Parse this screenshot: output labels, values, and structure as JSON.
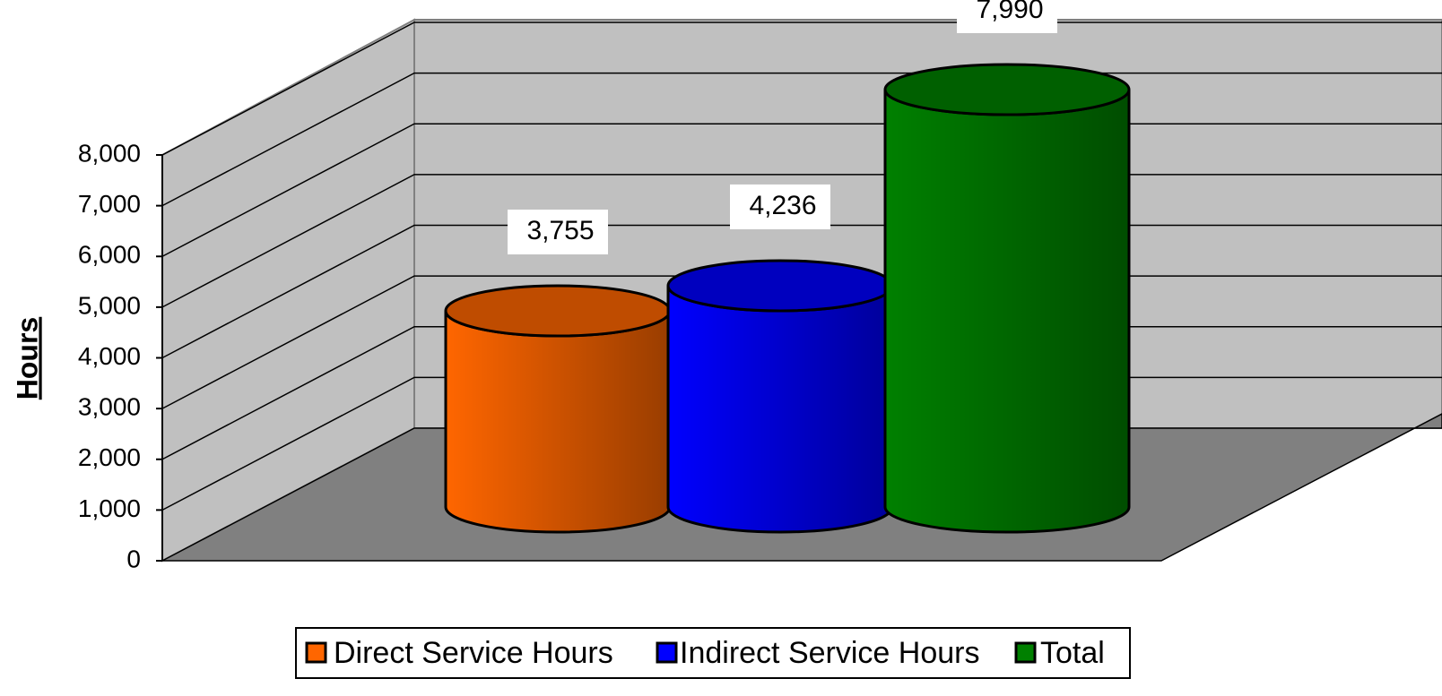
{
  "chart_data": {
    "type": "bar",
    "y_label": "Hours",
    "categories": [
      null
    ],
    "series": [
      {
        "name": "Direct Service Hours",
        "color": "#ff6600",
        "values": [
          3755
        ],
        "value_labels": [
          "3,755"
        ]
      },
      {
        "name": "Indirect Service Hours",
        "color": "#0000ff",
        "values": [
          4236
        ],
        "value_labels": [
          "4,236"
        ]
      },
      {
        "name": "Total",
        "color": "#008000",
        "values": [
          7990
        ],
        "value_labels": [
          "7,990"
        ]
      }
    ],
    "ylim": [
      0,
      8000
    ],
    "yticks": [
      0,
      {
        "value": 1000,
        "label": "1,000"
      },
      {
        "value": 2000,
        "label": "2,000"
      },
      {
        "value": 3000,
        "label": "3,000"
      },
      {
        "value": 4000,
        "label": "4,000"
      },
      {
        "value": 5000,
        "label": "5,000"
      },
      {
        "value": 6000,
        "label": "6,000"
      },
      {
        "value": 7000,
        "label": "7,000"
      },
      {
        "value": 8000,
        "label": "8,000"
      }
    ],
    "grid": true,
    "legend": "bottom"
  }
}
